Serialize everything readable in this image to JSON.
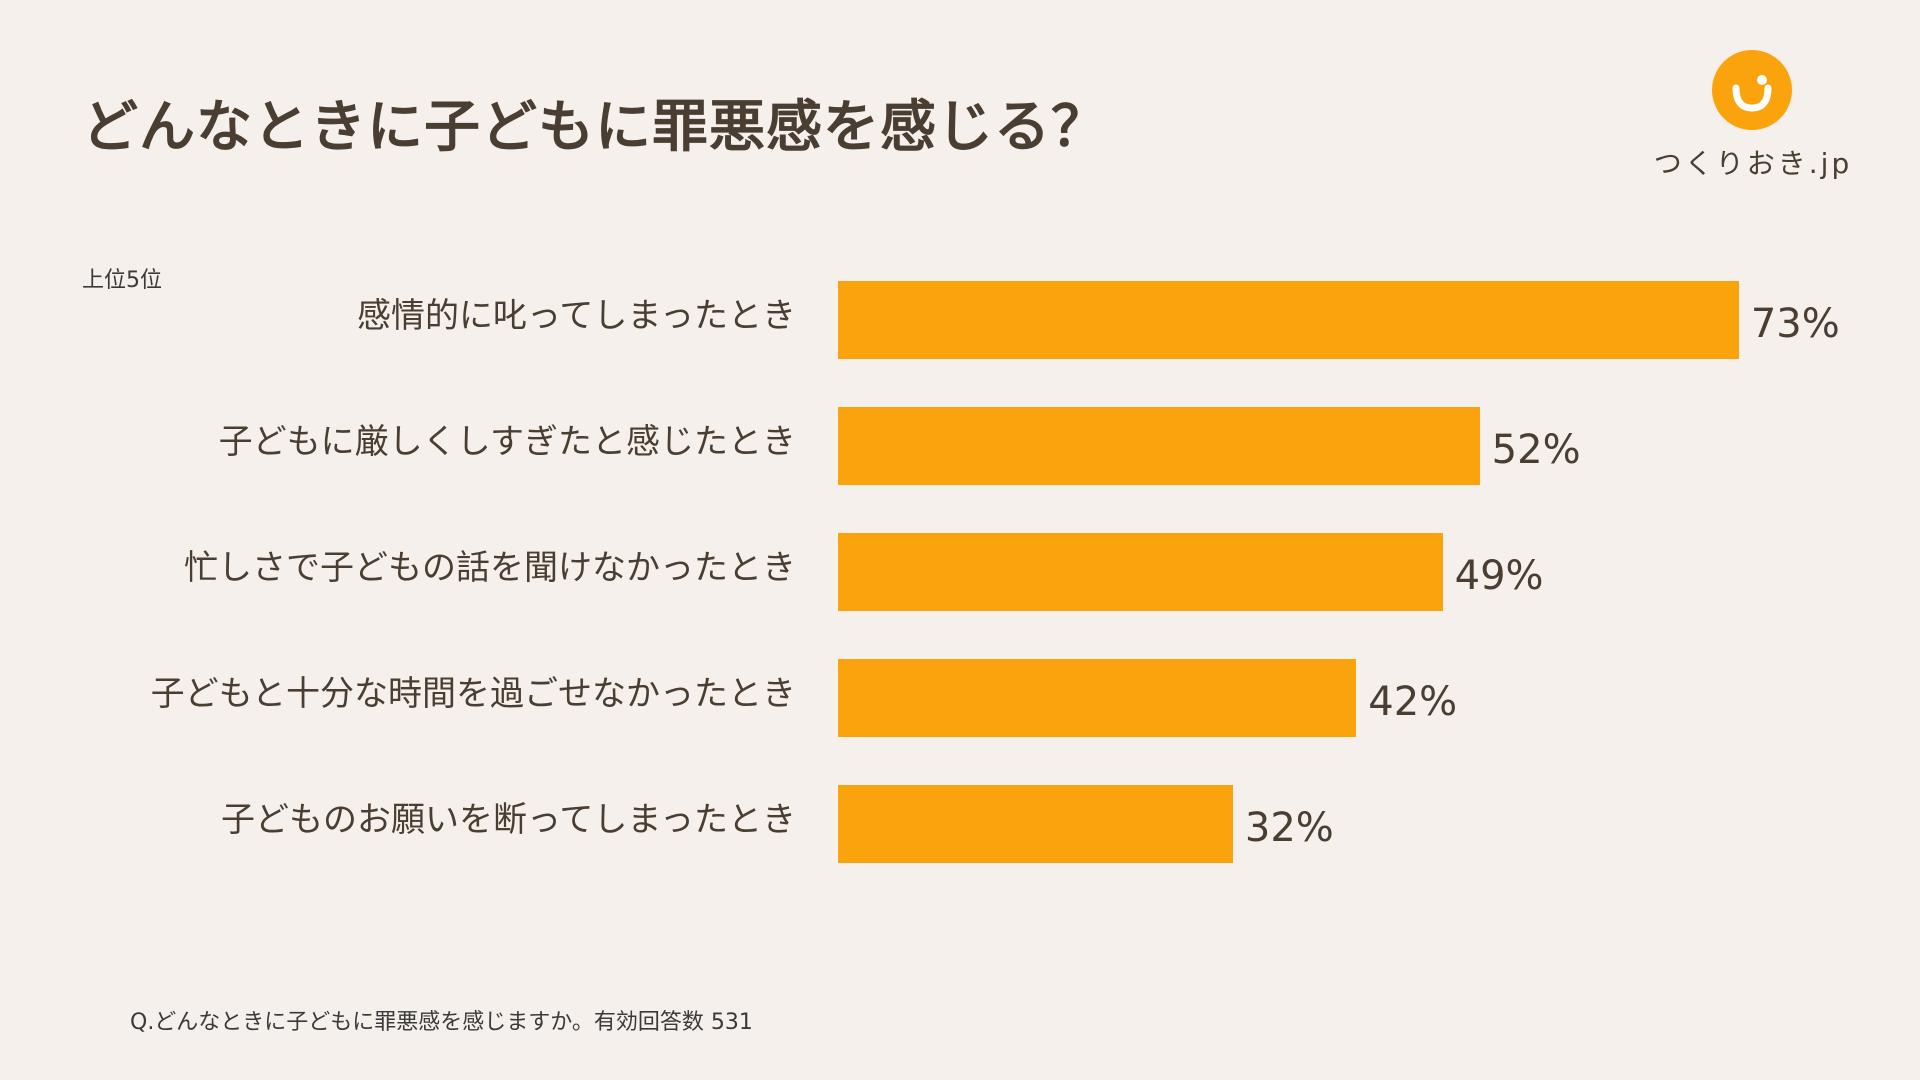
{
  "brand": {
    "name": "つくりおき.jp",
    "accent": "#fba30c"
  },
  "chart_data": {
    "type": "bar",
    "orientation": "horizontal",
    "title": "どんなときに子どもに罪悪感を感じる？",
    "subtitle": "上位5位",
    "categories": [
      "感情的に叱ってしまったとき",
      "子どもに厳しくしすぎたと感じたとき",
      "忙しさで子どもの話を聞けなかったとき",
      "子どもと十分な時間を過ごせなかったとき",
      "子どものお願いを断ってしまったとき"
    ],
    "values": [
      73,
      52,
      49,
      42,
      32
    ],
    "value_labels": [
      "73%",
      "52%",
      "49%",
      "42%",
      "32%"
    ],
    "unit": "%",
    "xlim": [
      0,
      100
    ],
    "bar_color": "#fba30c",
    "grid": false,
    "legend": "none",
    "footnote": "Q.どんなときに子どもに罪悪感を感じますか。有効回答数 531"
  }
}
